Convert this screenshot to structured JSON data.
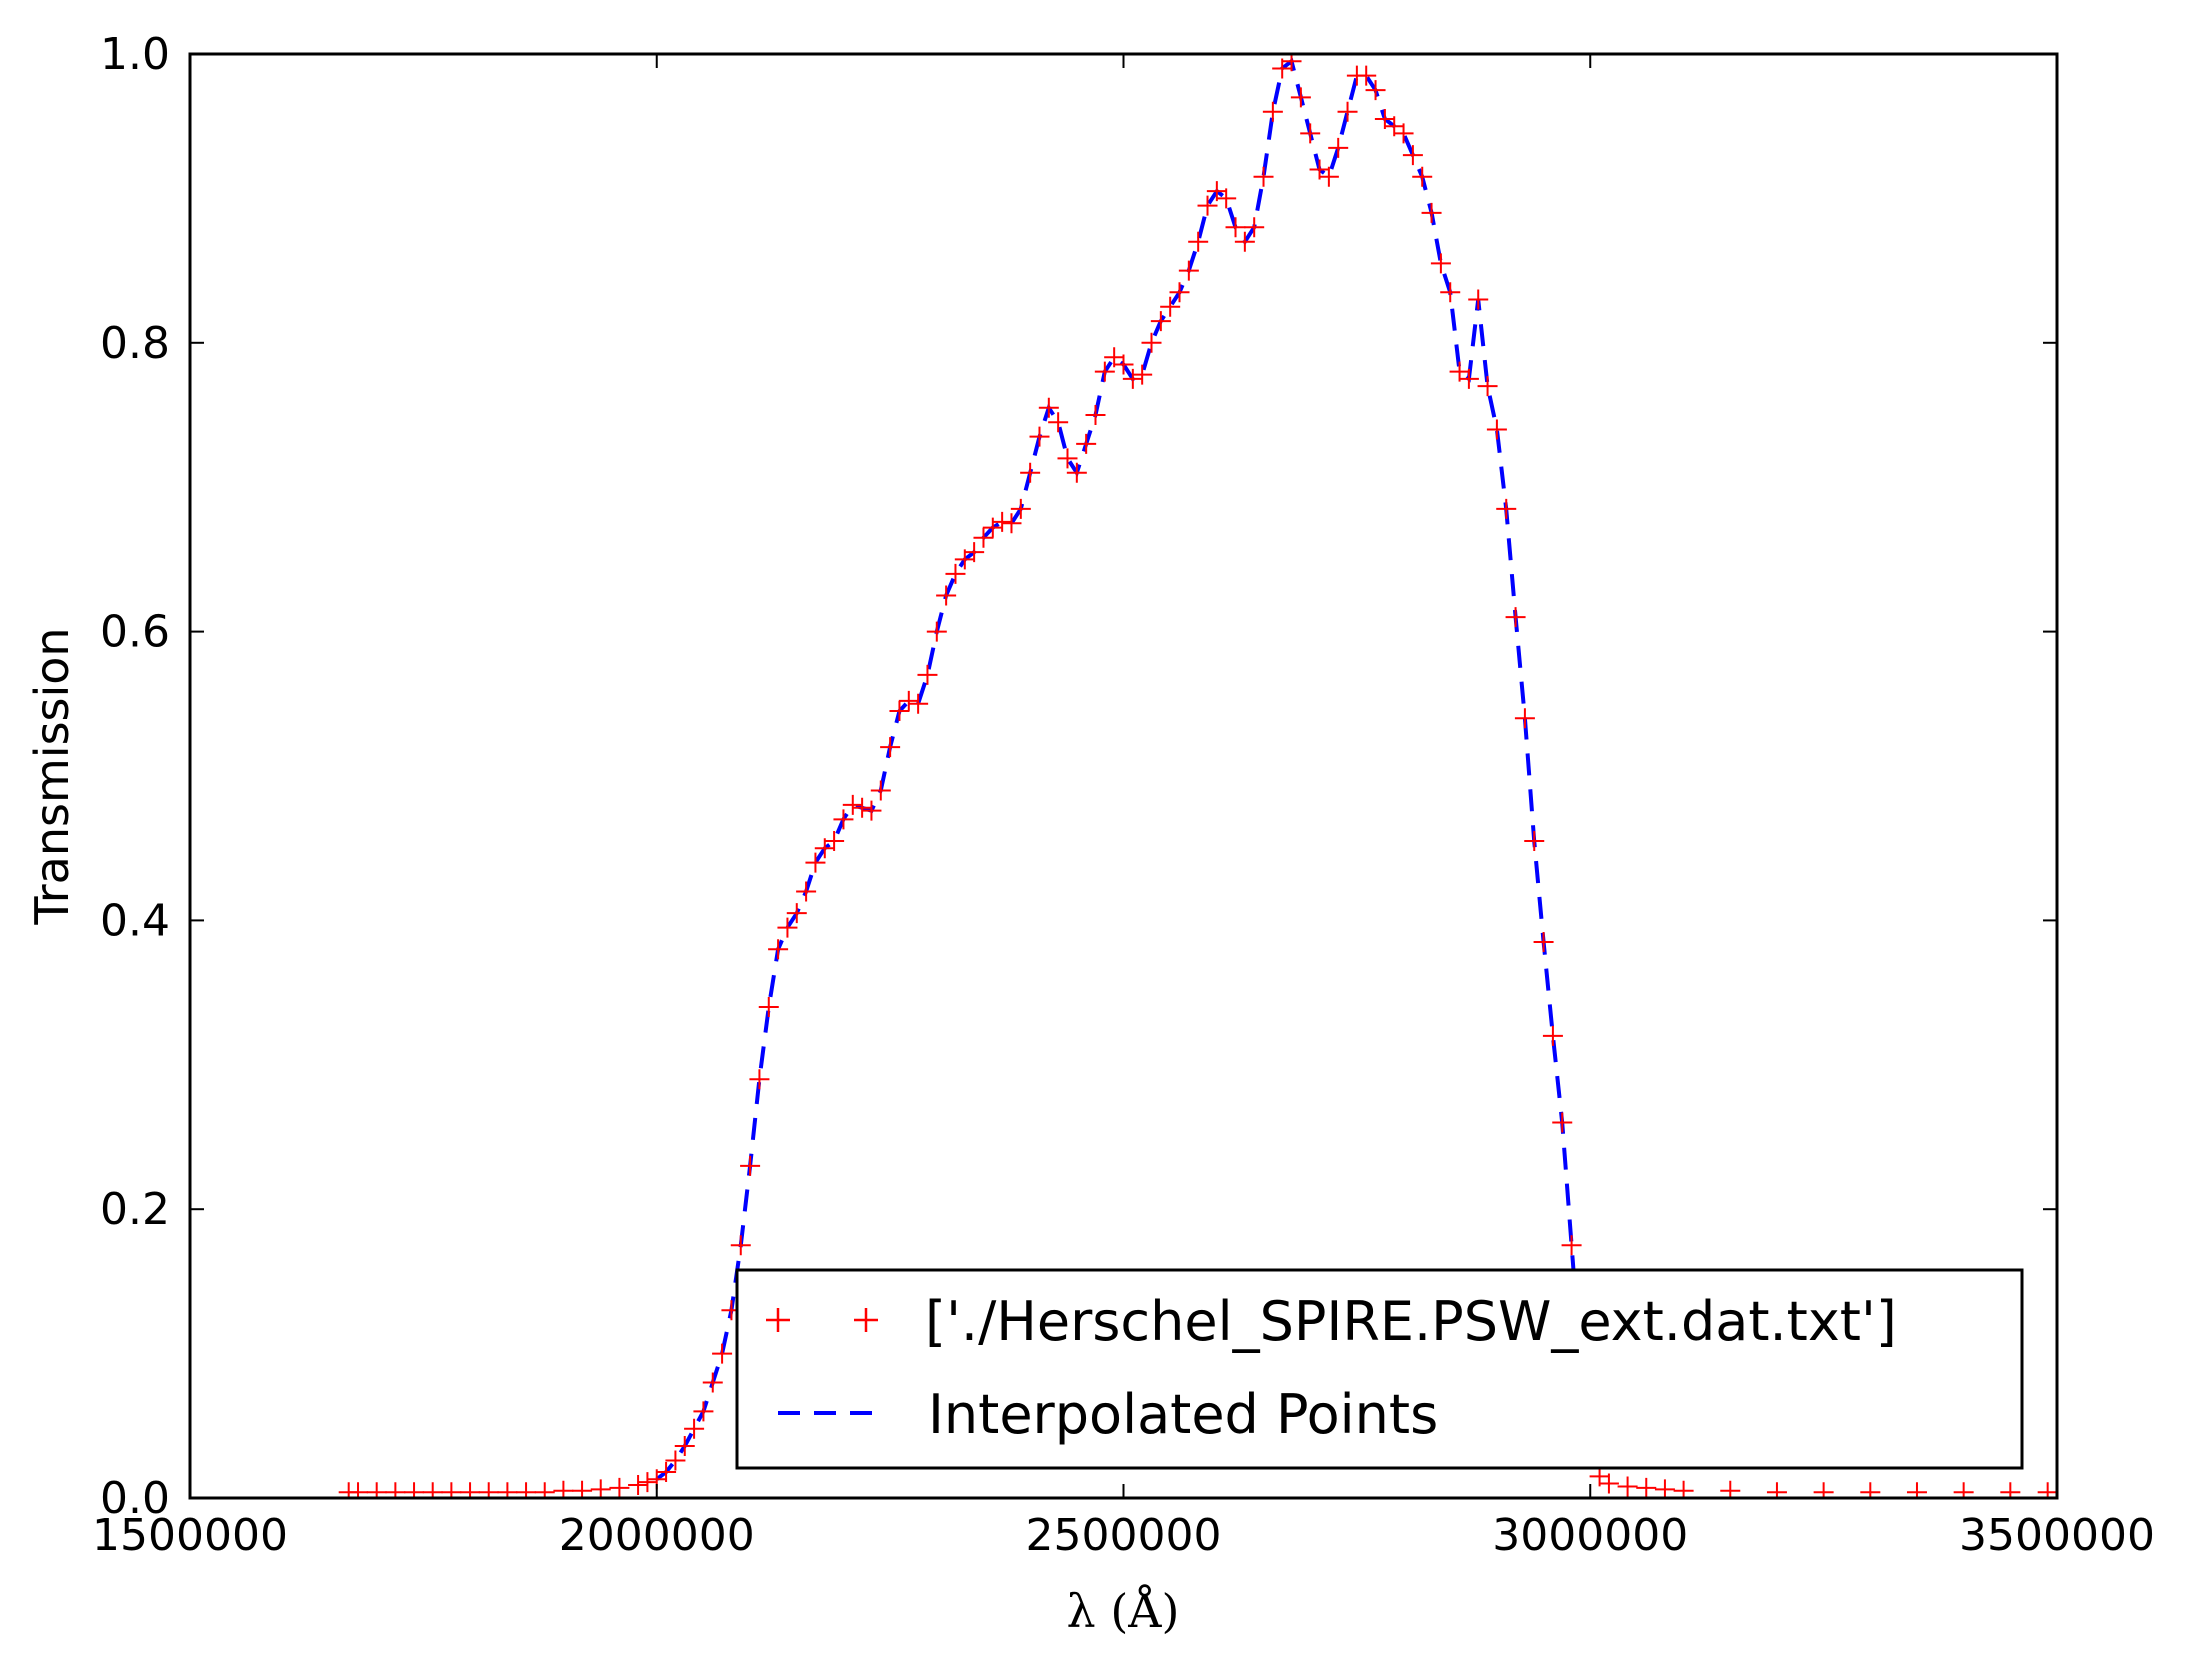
{
  "chart_data": {
    "type": "line",
    "xlabel": "λ (Å)",
    "ylabel": "Transmission",
    "xlim": [
      1500000,
      3500000
    ],
    "ylim": [
      0.0,
      1.0
    ],
    "x_ticks": [
      "1500000",
      "2000000",
      "2500000",
      "3000000",
      "3500000"
    ],
    "y_ticks": [
      "0.0",
      "0.2",
      "0.4",
      "0.6",
      "0.8",
      "1.0"
    ],
    "grid": false,
    "legend_position": "lower-right",
    "series": [
      {
        "name": "['./Herschel_SPIRE.PSW_ext.dat.txt']",
        "style": "markers",
        "marker": "plus",
        "color": "#ff0000",
        "points": [
          [
            1670000,
            0.004
          ],
          [
            1680000,
            0.004
          ],
          [
            1700000,
            0.004
          ],
          [
            1720000,
            0.004
          ],
          [
            1740000,
            0.004
          ],
          [
            1760000,
            0.004
          ],
          [
            1780000,
            0.004
          ],
          [
            1800000,
            0.004
          ],
          [
            1820000,
            0.004
          ],
          [
            1840000,
            0.004
          ],
          [
            1860000,
            0.004
          ],
          [
            1880000,
            0.004
          ],
          [
            1900000,
            0.005
          ],
          [
            1920000,
            0.005
          ],
          [
            1940000,
            0.006
          ],
          [
            1960000,
            0.007
          ],
          [
            1980000,
            0.009
          ],
          [
            1990000,
            0.011
          ],
          [
            2000000,
            0.013
          ],
          [
            2010000,
            0.018
          ],
          [
            2020000,
            0.026
          ],
          [
            2030000,
            0.036
          ],
          [
            2040000,
            0.048
          ],
          [
            2050000,
            0.06
          ],
          [
            2060000,
            0.08
          ],
          [
            2070000,
            0.1
          ],
          [
            2080000,
            0.13
          ],
          [
            2090000,
            0.175
          ],
          [
            2100000,
            0.23
          ],
          [
            2110000,
            0.29
          ],
          [
            2120000,
            0.34
          ],
          [
            2130000,
            0.38
          ],
          [
            2140000,
            0.395
          ],
          [
            2150000,
            0.405
          ],
          [
            2160000,
            0.42
          ],
          [
            2170000,
            0.44
          ],
          [
            2180000,
            0.45
          ],
          [
            2190000,
            0.455
          ],
          [
            2200000,
            0.47
          ],
          [
            2210000,
            0.48
          ],
          [
            2220000,
            0.478
          ],
          [
            2230000,
            0.476
          ],
          [
            2240000,
            0.49
          ],
          [
            2250000,
            0.52
          ],
          [
            2260000,
            0.545
          ],
          [
            2270000,
            0.552
          ],
          [
            2280000,
            0.55
          ],
          [
            2290000,
            0.57
          ],
          [
            2300000,
            0.6
          ],
          [
            2310000,
            0.625
          ],
          [
            2320000,
            0.64
          ],
          [
            2330000,
            0.65
          ],
          [
            2340000,
            0.655
          ],
          [
            2350000,
            0.665
          ],
          [
            2360000,
            0.672
          ],
          [
            2370000,
            0.676
          ],
          [
            2380000,
            0.675
          ],
          [
            2390000,
            0.685
          ],
          [
            2400000,
            0.71
          ],
          [
            2410000,
            0.735
          ],
          [
            2420000,
            0.755
          ],
          [
            2430000,
            0.745
          ],
          [
            2440000,
            0.72
          ],
          [
            2450000,
            0.71
          ],
          [
            2460000,
            0.73
          ],
          [
            2470000,
            0.75
          ],
          [
            2480000,
            0.78
          ],
          [
            2490000,
            0.79
          ],
          [
            2500000,
            0.785
          ],
          [
            2510000,
            0.775
          ],
          [
            2520000,
            0.778
          ],
          [
            2530000,
            0.8
          ],
          [
            2540000,
            0.815
          ],
          [
            2550000,
            0.825
          ],
          [
            2560000,
            0.835
          ],
          [
            2570000,
            0.85
          ],
          [
            2580000,
            0.87
          ],
          [
            2590000,
            0.895
          ],
          [
            2600000,
            0.905
          ],
          [
            2610000,
            0.9
          ],
          [
            2620000,
            0.88
          ],
          [
            2630000,
            0.87
          ],
          [
            2640000,
            0.88
          ],
          [
            2650000,
            0.915
          ],
          [
            2660000,
            0.96
          ],
          [
            2670000,
            0.99
          ],
          [
            2680000,
            0.995
          ],
          [
            2690000,
            0.97
          ],
          [
            2700000,
            0.945
          ],
          [
            2710000,
            0.92
          ],
          [
            2720000,
            0.915
          ],
          [
            2730000,
            0.935
          ],
          [
            2740000,
            0.96
          ],
          [
            2750000,
            0.985
          ],
          [
            2760000,
            0.985
          ],
          [
            2770000,
            0.975
          ],
          [
            2780000,
            0.955
          ],
          [
            2790000,
            0.95
          ],
          [
            2800000,
            0.945
          ],
          [
            2810000,
            0.93
          ],
          [
            2820000,
            0.915
          ],
          [
            2830000,
            0.89
          ],
          [
            2840000,
            0.855
          ],
          [
            2850000,
            0.835
          ],
          [
            2860000,
            0.78
          ],
          [
            2870000,
            0.775
          ],
          [
            2880000,
            0.83
          ],
          [
            2890000,
            0.77
          ],
          [
            2900000,
            0.74
          ],
          [
            2910000,
            0.685
          ],
          [
            2920000,
            0.61
          ],
          [
            2930000,
            0.54
          ],
          [
            2940000,
            0.455
          ],
          [
            2950000,
            0.385
          ],
          [
            2960000,
            0.32
          ],
          [
            2970000,
            0.26
          ],
          [
            2980000,
            0.175
          ],
          [
            2990000,
            0.09
          ],
          [
            3000000,
            0.035
          ],
          [
            3010000,
            0.015
          ],
          [
            3020000,
            0.01
          ],
          [
            3040000,
            0.008
          ],
          [
            3060000,
            0.007
          ],
          [
            3080000,
            0.006
          ],
          [
            3100000,
            0.005
          ],
          [
            3150000,
            0.005
          ],
          [
            3200000,
            0.004
          ],
          [
            3250000,
            0.004
          ],
          [
            3300000,
            0.004
          ],
          [
            3350000,
            0.004
          ],
          [
            3400000,
            0.004
          ],
          [
            3450000,
            0.004
          ],
          [
            3490000,
            0.004
          ]
        ]
      },
      {
        "name": "Interpolated Points",
        "style": "dashed-line",
        "color": "#0000ff",
        "points": [
          [
            2000000,
            0.013
          ],
          [
            2010000,
            0.018
          ],
          [
            2020000,
            0.026
          ],
          [
            2030000,
            0.036
          ],
          [
            2040000,
            0.048
          ],
          [
            2050000,
            0.06
          ],
          [
            2060000,
            0.08
          ],
          [
            2070000,
            0.1
          ],
          [
            2080000,
            0.13
          ],
          [
            2090000,
            0.175
          ],
          [
            2100000,
            0.23
          ],
          [
            2110000,
            0.29
          ],
          [
            2120000,
            0.34
          ],
          [
            2130000,
            0.38
          ],
          [
            2140000,
            0.395
          ],
          [
            2150000,
            0.405
          ],
          [
            2160000,
            0.42
          ],
          [
            2170000,
            0.44
          ],
          [
            2180000,
            0.45
          ],
          [
            2190000,
            0.455
          ],
          [
            2200000,
            0.47
          ],
          [
            2210000,
            0.48
          ],
          [
            2220000,
            0.478
          ],
          [
            2230000,
            0.476
          ],
          [
            2240000,
            0.49
          ],
          [
            2250000,
            0.52
          ],
          [
            2260000,
            0.545
          ],
          [
            2270000,
            0.552
          ],
          [
            2280000,
            0.55
          ],
          [
            2290000,
            0.57
          ],
          [
            2300000,
            0.6
          ],
          [
            2310000,
            0.625
          ],
          [
            2320000,
            0.64
          ],
          [
            2330000,
            0.65
          ],
          [
            2340000,
            0.655
          ],
          [
            2350000,
            0.665
          ],
          [
            2360000,
            0.672
          ],
          [
            2370000,
            0.676
          ],
          [
            2380000,
            0.675
          ],
          [
            2390000,
            0.685
          ],
          [
            2400000,
            0.71
          ],
          [
            2410000,
            0.735
          ],
          [
            2420000,
            0.755
          ],
          [
            2430000,
            0.745
          ],
          [
            2440000,
            0.72
          ],
          [
            2450000,
            0.71
          ],
          [
            2460000,
            0.73
          ],
          [
            2470000,
            0.75
          ],
          [
            2480000,
            0.78
          ],
          [
            2490000,
            0.79
          ],
          [
            2500000,
            0.785
          ],
          [
            2510000,
            0.775
          ],
          [
            2520000,
            0.778
          ],
          [
            2530000,
            0.8
          ],
          [
            2540000,
            0.815
          ],
          [
            2550000,
            0.825
          ],
          [
            2560000,
            0.835
          ],
          [
            2570000,
            0.85
          ],
          [
            2580000,
            0.87
          ],
          [
            2590000,
            0.895
          ],
          [
            2600000,
            0.905
          ],
          [
            2610000,
            0.9
          ],
          [
            2620000,
            0.88
          ],
          [
            2630000,
            0.87
          ],
          [
            2640000,
            0.88
          ],
          [
            2650000,
            0.915
          ],
          [
            2660000,
            0.96
          ],
          [
            2670000,
            0.99
          ],
          [
            2680000,
            0.995
          ],
          [
            2690000,
            0.97
          ],
          [
            2700000,
            0.945
          ],
          [
            2710000,
            0.92
          ],
          [
            2720000,
            0.915
          ],
          [
            2730000,
            0.935
          ],
          [
            2740000,
            0.96
          ],
          [
            2750000,
            0.985
          ],
          [
            2760000,
            0.985
          ],
          [
            2770000,
            0.975
          ],
          [
            2780000,
            0.955
          ],
          [
            2790000,
            0.95
          ],
          [
            2800000,
            0.945
          ],
          [
            2810000,
            0.93
          ],
          [
            2820000,
            0.915
          ],
          [
            2830000,
            0.89
          ],
          [
            2840000,
            0.855
          ],
          [
            2850000,
            0.835
          ],
          [
            2860000,
            0.78
          ],
          [
            2870000,
            0.775
          ],
          [
            2880000,
            0.83
          ],
          [
            2890000,
            0.77
          ],
          [
            2900000,
            0.74
          ],
          [
            2910000,
            0.685
          ],
          [
            2920000,
            0.61
          ],
          [
            2930000,
            0.54
          ],
          [
            2940000,
            0.455
          ],
          [
            2950000,
            0.385
          ],
          [
            2960000,
            0.32
          ],
          [
            2970000,
            0.26
          ],
          [
            2980000,
            0.175
          ],
          [
            2990000,
            0.09
          ],
          [
            3000000,
            0.035
          ]
        ]
      }
    ]
  }
}
